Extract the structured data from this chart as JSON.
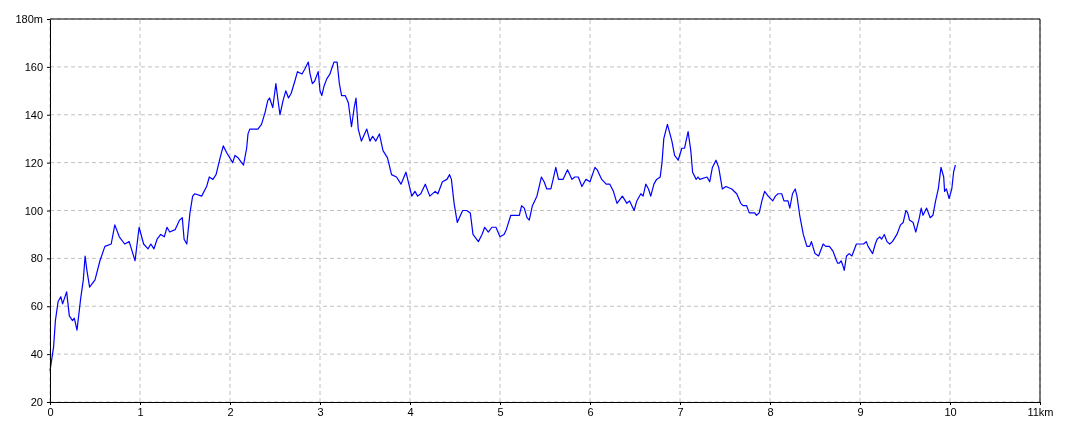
{
  "chart_data": {
    "type": "line",
    "color": "#0000ff",
    "grid": true,
    "xlim": [
      0,
      11
    ],
    "ylim": [
      20,
      180
    ],
    "xticks": [
      0,
      1,
      2,
      3,
      4,
      5,
      6,
      7,
      8,
      9,
      10,
      {
        "value": 11,
        "label": "11km"
      }
    ],
    "yticks": [
      20,
      40,
      60,
      80,
      100,
      120,
      140,
      160,
      {
        "value": 180,
        "label": "180m"
      }
    ],
    "x": [
      0,
      0.04,
      0.06,
      0.09,
      0.12,
      0.14,
      0.185,
      0.215,
      0.25,
      0.27,
      0.3,
      0.34,
      0.37,
      0.39,
      0.41,
      0.44,
      0.5,
      0.555,
      0.61,
      0.68,
      0.72,
      0.77,
      0.83,
      0.88,
      0.945,
      0.99,
      1.04,
      1.09,
      1.12,
      1.155,
      1.19,
      1.23,
      1.27,
      1.3,
      1.33,
      1.39,
      1.44,
      1.47,
      1.49,
      1.52,
      1.555,
      1.585,
      1.61,
      1.685,
      1.74,
      1.77,
      1.81,
      1.845,
      1.89,
      1.925,
      1.965,
      2.03,
      2.055,
      2.09,
      2.15,
      2.185,
      2.2,
      2.22,
      2.28,
      2.31,
      2.35,
      2.39,
      2.42,
      2.44,
      2.475,
      2.51,
      2.53,
      2.555,
      2.59,
      2.62,
      2.65,
      2.68,
      2.72,
      2.75,
      2.8,
      2.83,
      2.87,
      2.89,
      2.915,
      2.94,
      2.98,
      3.0,
      3.02,
      3.045,
      3.075,
      3.11,
      3.155,
      3.19,
      3.215,
      3.24,
      3.28,
      3.315,
      3.35,
      3.38,
      3.4,
      3.425,
      3.46,
      3.52,
      3.555,
      3.585,
      3.62,
      3.66,
      3.7,
      3.75,
      3.795,
      3.85,
      3.9,
      3.955,
      4.02,
      4.055,
      4.085,
      4.12,
      4.17,
      4.22,
      4.28,
      4.31,
      4.36,
      4.41,
      4.44,
      4.46,
      4.49,
      4.525,
      4.585,
      4.63,
      4.67,
      4.7,
      4.76,
      4.8,
      4.83,
      4.87,
      4.91,
      4.955,
      5.0,
      5.045,
      5.07,
      5.12,
      5.15,
      5.215,
      5.24,
      5.27,
      5.3,
      5.325,
      5.36,
      5.41,
      5.435,
      5.46,
      5.49,
      5.52,
      5.565,
      5.59,
      5.62,
      5.65,
      5.7,
      5.75,
      5.8,
      5.83,
      5.87,
      5.91,
      5.955,
      6.0,
      6.055,
      6.08,
      6.13,
      6.18,
      6.22,
      6.26,
      6.3,
      6.36,
      6.41,
      6.44,
      6.49,
      6.52,
      6.565,
      6.59,
      6.62,
      6.65,
      6.675,
      6.71,
      6.74,
      6.78,
      6.8,
      6.82,
      6.86,
      6.91,
      6.94,
      6.98,
      7.02,
      7.05,
      7.09,
      7.12,
      7.14,
      7.18,
      7.2,
      7.22,
      7.3,
      7.33,
      7.36,
      7.4,
      7.43,
      7.47,
      7.51,
      7.575,
      7.63,
      7.675,
      7.7,
      7.74,
      7.77,
      7.83,
      7.85,
      7.88,
      7.91,
      7.94,
      7.98,
      8.03,
      8.06,
      8.09,
      8.13,
      8.155,
      8.2,
      8.22,
      8.25,
      8.28,
      8.3,
      8.33,
      8.37,
      8.41,
      8.44,
      8.46,
      8.5,
      8.54,
      8.56,
      8.59,
      8.62,
      8.66,
      8.7,
      8.72,
      8.75,
      8.77,
      8.79,
      8.81,
      8.825,
      8.85,
      8.88,
      8.91,
      8.94,
      8.96,
      9.02,
      9.04,
      9.07,
      9.09,
      9.14,
      9.17,
      9.19,
      9.22,
      9.24,
      9.27,
      9.3,
      9.33,
      9.36,
      9.41,
      9.45,
      9.48,
      9.51,
      9.53,
      9.55,
      9.59,
      9.62,
      9.66,
      9.68,
      9.7,
      9.74,
      9.78,
      9.81,
      9.84,
      9.87,
      9.9,
      9.93,
      9.94,
      9.96,
      9.99,
      10.02,
      10.04,
      10.06
    ],
    "values": [
      33,
      43,
      54,
      62,
      64,
      61,
      66,
      56,
      54,
      55,
      50,
      63,
      71,
      81,
      75,
      68,
      71,
      79,
      85,
      86,
      94,
      89,
      86,
      87,
      79,
      93,
      86,
      84,
      86,
      84,
      88,
      90,
      89,
      93,
      91,
      92,
      96,
      97,
      88,
      86,
      99,
      106,
      107,
      106,
      110,
      114,
      113,
      115,
      122,
      127,
      124,
      120,
      123,
      122,
      119,
      126,
      132,
      134,
      134,
      134,
      136,
      141,
      146,
      147,
      143,
      153,
      147,
      140,
      146,
      150,
      147,
      149,
      154,
      158,
      157,
      159,
      162,
      157,
      153,
      154,
      158,
      150,
      148,
      152,
      155,
      157,
      162,
      162,
      153,
      148,
      148,
      145,
      135,
      143,
      147,
      134,
      129,
      134,
      129,
      131,
      129,
      132,
      125,
      122,
      115,
      114,
      111,
      116,
      106,
      108,
      106,
      107,
      111,
      106,
      108,
      107,
      112,
      113,
      115,
      113,
      103,
      95,
      100,
      100,
      99,
      90,
      87,
      90,
      93,
      91,
      93,
      93,
      89,
      90,
      92,
      98,
      98,
      98,
      102,
      101,
      97,
      96,
      102,
      106,
      110,
      114,
      112,
      109,
      109,
      113,
      118,
      113,
      113,
      117,
      113,
      114,
      114,
      110,
      113,
      112,
      118,
      117,
      113,
      111,
      111,
      108,
      103,
      106,
      103,
      104,
      100,
      104,
      107,
      106,
      111,
      109,
      106,
      111,
      113,
      114,
      120,
      130,
      136,
      129,
      123,
      121,
      126,
      126,
      133,
      125,
      116,
      113,
      114,
      113,
      114,
      112,
      118,
      121,
      118,
      109,
      110,
      109,
      107,
      103,
      102,
      102,
      99,
      99,
      98,
      99,
      104,
      108,
      106,
      104,
      106,
      107,
      107,
      104,
      104,
      101,
      107,
      109,
      106,
      98,
      90,
      85,
      85,
      87,
      82,
      81,
      83,
      86,
      85,
      85,
      83,
      81,
      78,
      78,
      79,
      77,
      75,
      81,
      82,
      81,
      84,
      86,
      86,
      86,
      87,
      85,
      82,
      86,
      88,
      89,
      88,
      90,
      87,
      86,
      87,
      90,
      94,
      95,
      100,
      99,
      96,
      95,
      91,
      97,
      101,
      98,
      101,
      97,
      98,
      104,
      109,
      118,
      114,
      108,
      109,
      105,
      109,
      116,
      119
    ]
  }
}
